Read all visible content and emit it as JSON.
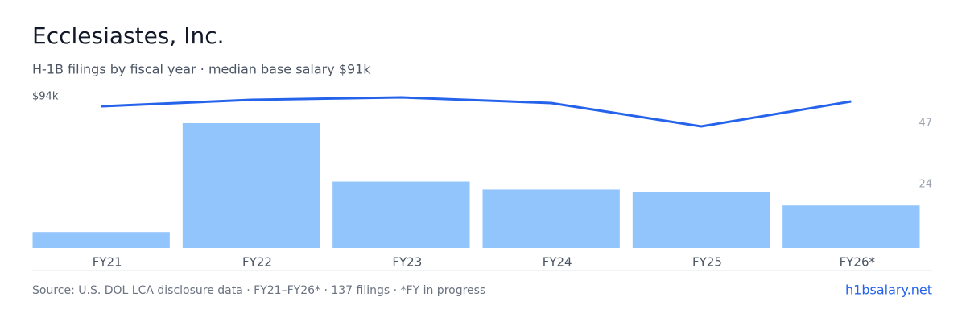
{
  "chart_data": {
    "type": "bar_line",
    "title": "Ecclesiastes, Inc.",
    "subtitle": "H-1B filings by fiscal year · median base salary $91k",
    "categories": [
      "FY21",
      "FY22",
      "FY23",
      "FY24",
      "FY25",
      "FY26*"
    ],
    "series": [
      {
        "name": "H-1B filings",
        "type": "bar",
        "axis": "y2",
        "color": "#93c5fd",
        "values": [
          6,
          47,
          25,
          22,
          21,
          16
        ]
      },
      {
        "name": "Median base salary",
        "type": "line",
        "axis": "y",
        "color": "#2563eb",
        "values": [
          88,
          92,
          93.5,
          90,
          75.5,
          91
        ]
      }
    ],
    "ylim": [
      0,
      94
    ],
    "yticks": [
      {
        "value": 94,
        "label": "$94k"
      }
    ],
    "y2lim": [
      0,
      57
    ],
    "y2ticks": [
      24,
      47
    ],
    "footer": "Source: U.S. DOL LCA disclosure data · FY21–FY26* · 137 filings · *FY in progress",
    "link": "h1bsalary.net"
  }
}
